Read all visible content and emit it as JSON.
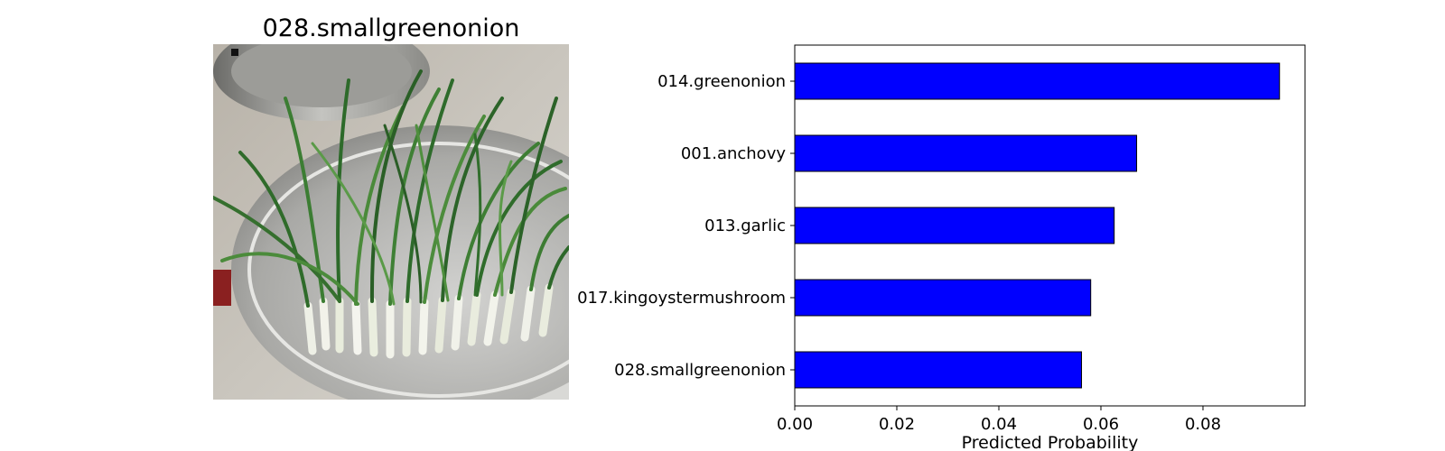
{
  "image_panel": {
    "title": "028.smallgreenonion",
    "photo_subject": "green onions in a steel bowl"
  },
  "chart_data": {
    "type": "bar",
    "orientation": "horizontal",
    "categories": [
      "014.greenonion",
      "001.anchovy",
      "013.garlic",
      "017.kingoystermushroom",
      "028.smallgreenonion"
    ],
    "values": [
      0.095,
      0.067,
      0.0626,
      0.058,
      0.0562
    ],
    "xlabel": "Predicted Probability",
    "ylabel": "",
    "xlim": [
      0,
      0.1
    ],
    "xticks": [
      "0.00",
      "0.02",
      "0.04",
      "0.06",
      "0.08"
    ],
    "grid": false,
    "bar_color": "#0000ff",
    "bar_edge_color": "#000000"
  }
}
